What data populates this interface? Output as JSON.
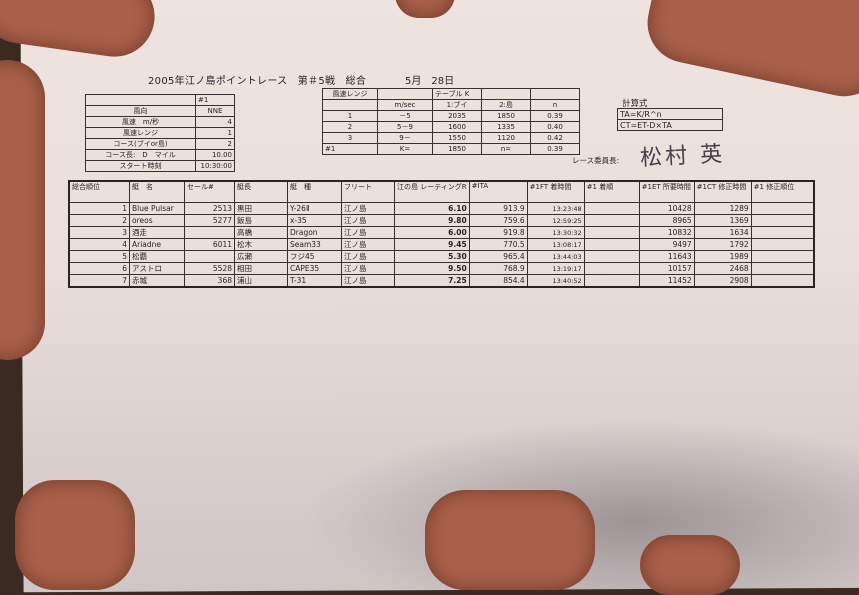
{
  "title": "2005年江ノ島ポイントレース　第＃5戦　総合",
  "date": "5月　28日",
  "conditions": {
    "header": "#1",
    "rows": [
      {
        "label": "風向",
        "value": "NNE"
      },
      {
        "label": "風速　m/秒",
        "value": "4"
      },
      {
        "label": "風速レンジ",
        "value": "1"
      },
      {
        "label": "コース(ブイor島)",
        "value": "2"
      },
      {
        "label": "コース長:　D　マイル",
        "value": "10.00"
      },
      {
        "label": "スタート時刻",
        "value": "10:30:00"
      }
    ]
  },
  "table_k": {
    "header1": [
      "風速レンジ",
      "",
      "テーブル K",
      "",
      ""
    ],
    "header2": [
      "",
      "m/sec",
      "1:ブイ",
      "2:島",
      "n"
    ],
    "rows": [
      [
        "1",
        "－5",
        "2035",
        "1850",
        "0.39"
      ],
      [
        "2",
        "5－9",
        "1600",
        "1335",
        "0.40"
      ],
      [
        "3",
        "9－",
        "1550",
        "1120",
        "0.42"
      ]
    ],
    "footer": [
      "#1",
      "K=",
      "1850",
      "n=",
      "0.39"
    ]
  },
  "formula": {
    "label": "計算式",
    "lines": [
      "TA=K/R^n",
      "CT=ET-D×TA"
    ]
  },
  "chair": {
    "label": "レース委員長:",
    "signature": "松村 英"
  },
  "results": {
    "headers": [
      "総合順位",
      "艇　名",
      "セール#",
      "艇長",
      "艇　種",
      "フリート",
      "江の島 レーティングR",
      "#ITA",
      "#1FT 着時間",
      "#1 着順",
      "#1ET 所要時間",
      "#1CT 修正時間",
      "#1 修正順位"
    ],
    "rows": [
      [
        "1",
        "Blue Pulsar",
        "2513",
        "黒田",
        "Y-26Ⅱ",
        "江ノ島",
        "6.10",
        "913.9",
        "13:23:48",
        "",
        "10428",
        "1289",
        ""
      ],
      [
        "2",
        "oreos",
        "5277",
        "飯島",
        "x-35",
        "江ノ島",
        "9.80",
        "759.6",
        "12:59:25",
        "",
        "8965",
        "1369",
        ""
      ],
      [
        "3",
        "酒走",
        "",
        "高橋",
        "Dragon",
        "江ノ島",
        "6.00",
        "919.8",
        "13:30:32",
        "",
        "10832",
        "1634",
        ""
      ],
      [
        "4",
        "Ariadne",
        "6011",
        "松木",
        "Seam33",
        "江ノ島",
        "9.45",
        "770.5",
        "13:08:17",
        "",
        "9497",
        "1792",
        ""
      ],
      [
        "5",
        "松覇",
        "",
        "広瀬",
        "フジ45",
        "江ノ島",
        "5.30",
        "965.4",
        "13:44:03",
        "",
        "11643",
        "1989",
        ""
      ],
      [
        "6",
        "アストロ",
        "5528",
        "相田",
        "CAPE35",
        "江ノ島",
        "9.50",
        "768.9",
        "13:19:17",
        "",
        "10157",
        "2468",
        ""
      ],
      [
        "7",
        "赤城",
        "368",
        "浦山",
        "T-31",
        "江ノ島",
        "7.25",
        "854.4",
        "13:40:52",
        "",
        "11452",
        "2908",
        ""
      ]
    ]
  }
}
